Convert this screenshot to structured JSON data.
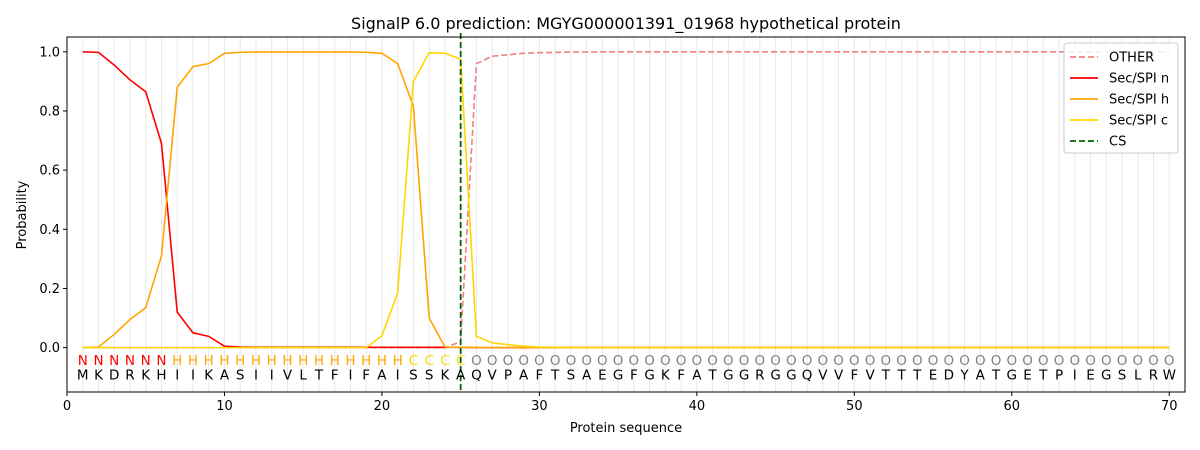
{
  "chart_data": {
    "type": "line",
    "title": "SignalP 6.0 prediction: MGYG000001391_01968 hypothetical protein",
    "xlabel": "Protein sequence",
    "ylabel": "Probability",
    "xlim": [
      0,
      71
    ],
    "ylim": [
      -0.15,
      1.05
    ],
    "xticks": [
      0,
      10,
      20,
      30,
      40,
      50,
      60,
      70
    ],
    "yticks": [
      0.0,
      0.2,
      0.4,
      0.6,
      0.8,
      1.0
    ],
    "ytick_labels": [
      "0.0",
      "0.2",
      "0.4",
      "0.6",
      "0.8",
      "1.0"
    ],
    "legend_position": "top-right",
    "cleavage_site": 25,
    "sequence": [
      "M",
      "K",
      "D",
      "R",
      "K",
      "H",
      "I",
      "I",
      "K",
      "A",
      "S",
      "I",
      "I",
      "V",
      "L",
      "T",
      "F",
      "I",
      "F",
      "A",
      "I",
      "S",
      "S",
      "K",
      "A",
      "Q",
      "V",
      "P",
      "A",
      "F",
      "T",
      "S",
      "A",
      "E",
      "G",
      "F",
      "G",
      "K",
      "F",
      "A",
      "T",
      "G",
      "G",
      "R",
      "G",
      "G",
      "Q",
      "V",
      "V",
      "F",
      "V",
      "T",
      "T",
      "T",
      "E",
      "D",
      "Y",
      "A",
      "T",
      "G",
      "E",
      "T",
      "P",
      "I",
      "E",
      "G",
      "S",
      "L",
      "R",
      "W"
    ],
    "region_labels": [
      "N",
      "N",
      "N",
      "N",
      "N",
      "N",
      "H",
      "H",
      "H",
      "H",
      "H",
      "H",
      "H",
      "H",
      "H",
      "H",
      "H",
      "H",
      "H",
      "H",
      "H",
      "C",
      "C",
      "C",
      "C",
      "O",
      "O",
      "O",
      "O",
      "O",
      "O",
      "O",
      "O",
      "O",
      "O",
      "O",
      "O",
      "O",
      "O",
      "O",
      "O",
      "O",
      "O",
      "O",
      "O",
      "O",
      "O",
      "O",
      "O",
      "O",
      "O",
      "O",
      "O",
      "O",
      "O",
      "O",
      "O",
      "O",
      "O",
      "O",
      "O",
      "O",
      "O",
      "O",
      "O",
      "O",
      "O",
      "O",
      "O",
      "O"
    ],
    "region_colors": {
      "N": "#ff0000",
      "H": "#ffa500",
      "C": "#ffd700",
      "O": "#808080"
    },
    "series": [
      {
        "name": "OTHER",
        "color": "#f08080",
        "style": "dashed",
        "values": [
          0,
          0,
          0,
          0,
          0,
          0,
          0,
          0,
          0,
          0,
          0,
          0,
          0,
          0,
          0,
          0,
          0,
          0,
          0,
          0,
          0,
          0,
          0,
          0,
          0.02,
          0.96,
          0.985,
          0.99,
          0.995,
          0.997,
          0.998,
          0.999,
          0.999,
          1,
          1,
          1,
          1,
          1,
          1,
          1,
          1,
          1,
          1,
          1,
          1,
          1,
          1,
          1,
          1,
          1,
          1,
          1,
          1,
          1,
          1,
          1,
          1,
          1,
          1,
          1,
          1,
          1,
          1,
          1,
          1,
          1,
          1,
          1,
          1,
          1
        ]
      },
      {
        "name": "Sec/SPI n",
        "color": "#ff0000",
        "style": "solid",
        "values": [
          1.0,
          0.998,
          0.955,
          0.905,
          0.865,
          0.69,
          0.12,
          0.05,
          0.038,
          0.005,
          0.002,
          0.001,
          0.001,
          0.001,
          0.001,
          0.001,
          0.001,
          0.001,
          0.001,
          0.001,
          0.001,
          0.001,
          0.001,
          0.001,
          0.001,
          0,
          0,
          0,
          0,
          0,
          0,
          0,
          0,
          0,
          0,
          0,
          0,
          0,
          0,
          0,
          0,
          0,
          0,
          0,
          0,
          0,
          0,
          0,
          0,
          0,
          0,
          0,
          0,
          0,
          0,
          0,
          0,
          0,
          0,
          0,
          0,
          0,
          0,
          0,
          0,
          0,
          0,
          0,
          0,
          0
        ]
      },
      {
        "name": "Sec/SPI h",
        "color": "#ffa500",
        "style": "solid",
        "values": [
          0,
          0.002,
          0.045,
          0.095,
          0.135,
          0.31,
          0.88,
          0.95,
          0.96,
          0.995,
          0.998,
          0.999,
          0.999,
          0.999,
          0.999,
          0.999,
          0.999,
          0.999,
          0.998,
          0.995,
          0.96,
          0.815,
          0.1,
          0.002,
          0.001,
          0,
          0,
          0,
          0,
          0,
          0,
          0,
          0,
          0,
          0,
          0,
          0,
          0,
          0,
          0,
          0,
          0,
          0,
          0,
          0,
          0,
          0,
          0,
          0,
          0,
          0,
          0,
          0,
          0,
          0,
          0,
          0,
          0,
          0,
          0,
          0,
          0,
          0,
          0,
          0,
          0,
          0,
          0,
          0,
          0
        ]
      },
      {
        "name": "Sec/SPI c",
        "color": "#ffd700",
        "style": "solid",
        "values": [
          0,
          0,
          0,
          0,
          0,
          0,
          0,
          0,
          0,
          0,
          0,
          0,
          0,
          0,
          0,
          0,
          0,
          0,
          0,
          0.04,
          0.185,
          0.9,
          0.997,
          0.995,
          0.975,
          0.038,
          0.016,
          0.01,
          0.005,
          0.002,
          0.001,
          0,
          0,
          0,
          0,
          0,
          0,
          0,
          0,
          0,
          0,
          0,
          0,
          0,
          0,
          0,
          0,
          0,
          0,
          0,
          0,
          0,
          0,
          0,
          0,
          0,
          0,
          0,
          0,
          0,
          0,
          0,
          0,
          0,
          0,
          0,
          0,
          0,
          0,
          0
        ]
      },
      {
        "name": "CS",
        "color": "#006400",
        "style": "dashed",
        "values": []
      }
    ]
  }
}
